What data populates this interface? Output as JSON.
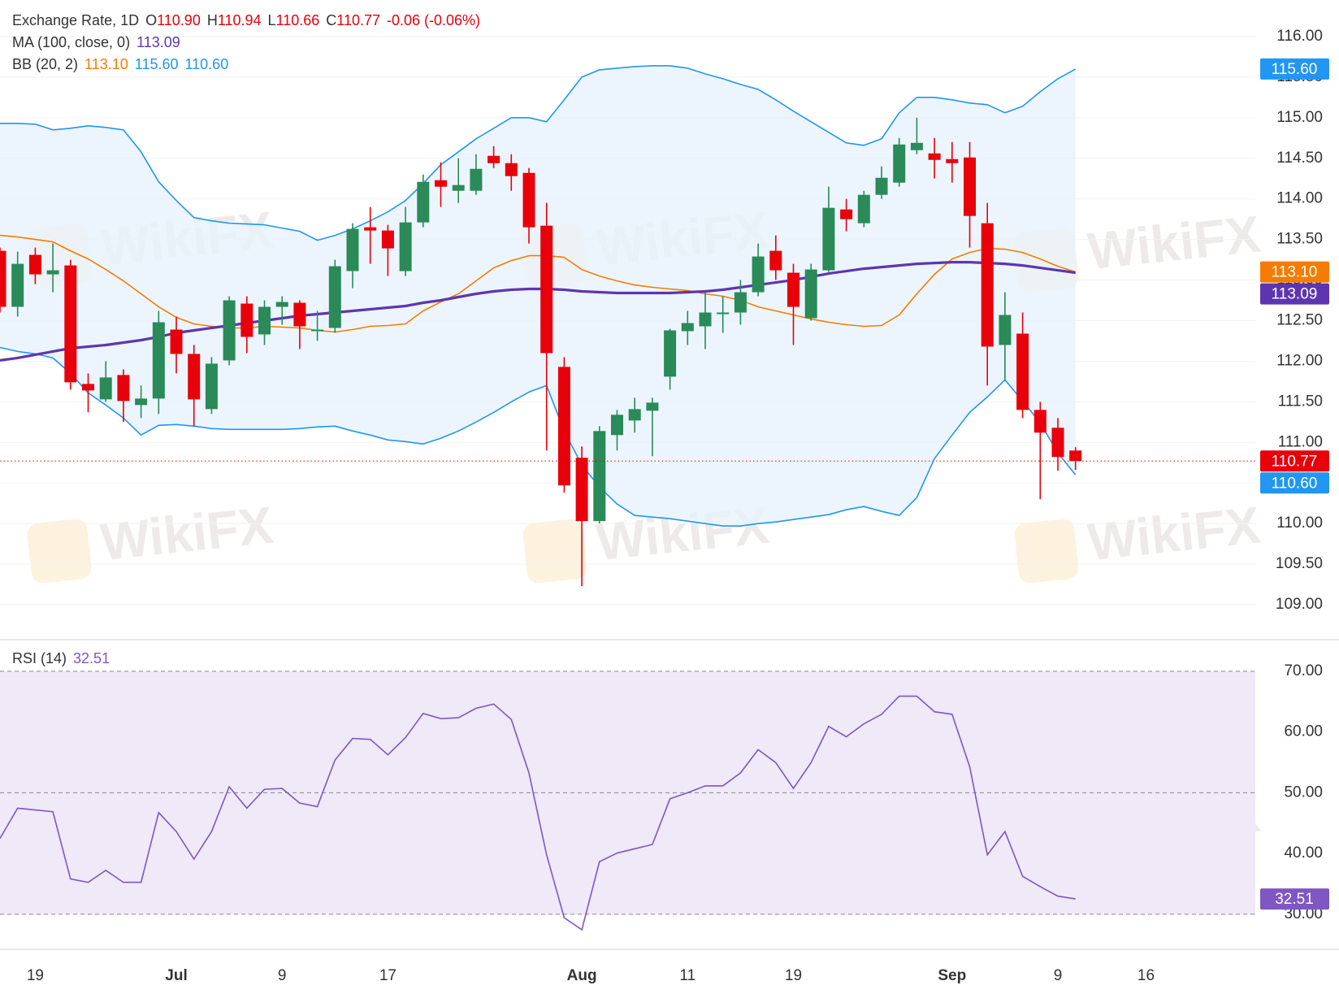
{
  "watermark": "WikiFX",
  "chart_data": [
    {
      "type": "candlestick",
      "title": "Exchange Rate, 1D",
      "header": [
        {
          "key": "O",
          "value": "110.90"
        },
        {
          "key": "H",
          "value": "110.94"
        },
        {
          "key": "L",
          "value": "110.66"
        },
        {
          "key": "C",
          "value": "110.77"
        }
      ],
      "change": "-0.06 (-0.06%)",
      "categories": [
        null,
        null,
        "19",
        null,
        null,
        null,
        null,
        null,
        null,
        null,
        "Jul",
        null,
        null,
        null,
        null,
        null,
        "9",
        null,
        null,
        null,
        null,
        null,
        "17",
        null,
        null,
        null,
        null,
        null,
        null,
        null,
        null,
        null,
        null,
        "Aug",
        null,
        null,
        null,
        null,
        null,
        "11",
        null,
        null,
        null,
        null,
        null,
        "19",
        null,
        null,
        null,
        null,
        null,
        null,
        null,
        null,
        "Sep",
        null,
        null,
        null,
        null,
        null,
        "9",
        null,
        null,
        null,
        null,
        "16"
      ],
      "open": [
        113.36,
        112.67,
        113.31,
        113.07,
        113.18,
        111.72,
        111.53,
        111.83,
        111.46,
        111.54,
        112.39,
        112.09,
        111.41,
        112.01,
        112.71,
        112.33,
        112.67,
        112.72,
        112.37,
        112.41,
        113.11,
        113.65,
        113.61,
        113.11,
        113.71,
        114.23,
        114.1,
        114.1,
        114.53,
        114.44,
        114.32,
        113.67,
        111.93,
        110.81,
        110.03,
        111.09,
        111.27,
        111.39,
        111.81,
        112.37,
        112.43,
        112.58,
        112.6,
        112.85,
        113.36,
        113.09,
        112.53,
        113.12,
        113.87,
        113.7,
        114.05,
        114.2,
        114.6,
        114.56,
        114.49,
        114.51,
        113.7,
        112.2,
        112.34,
        111.4,
        111.18,
        110.9,
        null,
        null,
        null,
        null
      ],
      "high": [
        113.4,
        113.35,
        113.4,
        113.45,
        113.25,
        111.85,
        112.0,
        111.9,
        111.7,
        112.62,
        112.55,
        112.2,
        112.05,
        112.8,
        112.8,
        112.75,
        112.8,
        112.75,
        112.62,
        113.25,
        113.7,
        113.9,
        113.68,
        113.9,
        114.3,
        114.45,
        114.5,
        114.55,
        114.65,
        114.55,
        114.38,
        113.95,
        112.05,
        110.95,
        111.2,
        111.4,
        111.55,
        111.55,
        112.4,
        112.62,
        112.85,
        112.8,
        113.0,
        113.45,
        113.55,
        113.2,
        113.2,
        114.15,
        114.0,
        114.1,
        114.4,
        114.75,
        115.0,
        114.75,
        114.7,
        114.7,
        113.95,
        112.85,
        112.6,
        111.5,
        111.3,
        110.94,
        null,
        null,
        null,
        null
      ],
      "low": [
        112.6,
        112.55,
        112.95,
        112.85,
        111.65,
        111.37,
        111.5,
        111.25,
        111.3,
        111.35,
        111.85,
        111.2,
        111.35,
        111.95,
        112.1,
        112.2,
        112.45,
        112.15,
        112.25,
        112.35,
        112.9,
        113.2,
        113.05,
        113.05,
        113.65,
        113.9,
        113.95,
        114.05,
        114.38,
        114.1,
        113.45,
        110.9,
        110.38,
        109.23,
        110.0,
        110.9,
        111.12,
        110.83,
        111.65,
        112.2,
        112.15,
        112.35,
        112.45,
        112.8,
        113.0,
        112.2,
        112.5,
        113.1,
        113.6,
        113.65,
        114.0,
        114.15,
        114.55,
        114.25,
        114.2,
        113.4,
        111.7,
        111.77,
        111.3,
        110.3,
        110.65,
        110.66,
        null,
        null,
        null,
        null
      ],
      "close": [
        112.67,
        113.2,
        113.07,
        113.12,
        111.74,
        111.64,
        111.8,
        111.51,
        111.54,
        112.48,
        112.09,
        111.53,
        111.97,
        112.75,
        112.3,
        112.67,
        112.73,
        112.43,
        112.39,
        113.17,
        113.63,
        113.61,
        113.39,
        113.71,
        114.21,
        114.15,
        114.17,
        114.37,
        114.44,
        114.28,
        113.65,
        112.1,
        110.47,
        110.03,
        111.14,
        111.34,
        111.41,
        111.49,
        112.38,
        112.47,
        112.6,
        112.6,
        112.85,
        113.29,
        113.12,
        112.67,
        113.13,
        113.89,
        113.75,
        114.05,
        114.26,
        114.67,
        114.69,
        114.48,
        114.44,
        113.79,
        112.18,
        112.57,
        111.4,
        111.12,
        110.82,
        110.77,
        null,
        null,
        null,
        null
      ],
      "close_label": "110.77",
      "up_color": "#2a8a58",
      "down_color": "#e8000a",
      "ylim": [
        108.6,
        116.45
      ],
      "yticks": [
        {
          "value": 109,
          "label": "109.00"
        },
        {
          "value": 109.5,
          "label": "109.50"
        },
        {
          "value": 110,
          "label": "110.00"
        },
        {
          "value": 110.5,
          "label": "110.50"
        },
        {
          "value": 111,
          "label": "111.00"
        },
        {
          "value": 111.5,
          "label": "111.50"
        },
        {
          "value": 112,
          "label": "112.00"
        },
        {
          "value": 112.5,
          "label": "112.50"
        },
        {
          "value": 113,
          "label": "113.00"
        },
        {
          "value": 113.5,
          "label": "113.50"
        },
        {
          "value": 114,
          "label": "114.00"
        },
        {
          "value": 114.5,
          "label": "114.50"
        },
        {
          "value": 115,
          "label": "115.00"
        },
        {
          "value": 115.5,
          "label": "115.50"
        },
        {
          "value": 116,
          "label": "116.00"
        }
      ],
      "grid": true,
      "indicators": [
        {
          "name": "MA (100, close, 0)",
          "lines": [
            {
              "color": "#5e35b1",
              "width": 3.2,
              "value_label": "113.09",
              "values": [
                112.01,
                112.04,
                112.08,
                112.12,
                112.16,
                112.18,
                112.2,
                112.23,
                112.26,
                112.3,
                112.35,
                112.38,
                112.41,
                112.44,
                112.47,
                112.5,
                112.53,
                112.56,
                112.58,
                112.6,
                112.62,
                112.64,
                112.66,
                112.68,
                112.72,
                112.75,
                112.79,
                112.83,
                112.86,
                112.88,
                112.89,
                112.89,
                112.88,
                112.86,
                112.85,
                112.84,
                112.84,
                112.84,
                112.84,
                112.85,
                112.86,
                112.88,
                112.91,
                112.94,
                112.97,
                113.0,
                113.04,
                113.08,
                113.11,
                113.14,
                113.16,
                113.18,
                113.2,
                113.21,
                113.22,
                113.22,
                113.21,
                113.2,
                113.18,
                113.15,
                113.12,
                113.09,
                null,
                null,
                null,
                null
              ]
            }
          ]
        },
        {
          "name": "BB (20, 2)",
          "fill": "#e6f2fc",
          "lines": [
            {
              "color": "#f57c00",
              "width": 1.6,
              "value_label": "113.10",
              "values": [
                113.55,
                113.53,
                113.5,
                113.47,
                113.36,
                113.26,
                113.13,
                112.99,
                112.83,
                112.67,
                112.54,
                112.46,
                112.43,
                112.41,
                112.41,
                112.43,
                112.42,
                112.41,
                112.38,
                112.36,
                112.39,
                112.43,
                112.44,
                112.46,
                112.62,
                112.73,
                112.83,
                112.99,
                113.15,
                113.24,
                113.3,
                113.3,
                113.28,
                113.13,
                113.05,
                112.99,
                112.94,
                112.91,
                112.89,
                112.87,
                112.83,
                112.8,
                112.75,
                112.67,
                112.62,
                112.57,
                112.52,
                112.48,
                112.45,
                112.43,
                112.44,
                112.57,
                112.83,
                113.07,
                113.26,
                113.34,
                113.39,
                113.38,
                113.34,
                113.26,
                113.17,
                113.1,
                null,
                null,
                null,
                null
              ]
            },
            {
              "color": "#2196f3",
              "width": 1.6,
              "value_label": "115.60",
              "values": [
                114.93,
                114.93,
                114.92,
                114.85,
                114.87,
                114.9,
                114.88,
                114.85,
                114.58,
                114.21,
                113.98,
                113.77,
                113.73,
                113.7,
                113.69,
                113.68,
                113.64,
                113.6,
                113.49,
                113.55,
                113.63,
                113.73,
                113.84,
                113.98,
                114.19,
                114.42,
                114.58,
                114.74,
                114.87,
                115.0,
                115.0,
                114.95,
                115.22,
                115.5,
                115.59,
                115.61,
                115.63,
                115.64,
                115.64,
                115.61,
                115.54,
                115.48,
                115.41,
                115.35,
                115.22,
                115.08,
                114.95,
                114.82,
                114.69,
                114.66,
                114.74,
                115.06,
                115.25,
                115.25,
                115.22,
                115.18,
                115.16,
                115.06,
                115.14,
                115.32,
                115.48,
                115.6,
                null,
                null,
                null,
                null
              ]
            },
            {
              "color": "#2196f3",
              "width": 1.6,
              "value_label": "110.60",
              "values": [
                112.17,
                112.12,
                112.09,
                112.04,
                111.85,
                111.61,
                111.46,
                111.3,
                111.09,
                111.21,
                111.22,
                111.2,
                111.17,
                111.16,
                111.16,
                111.16,
                111.16,
                111.17,
                111.19,
                111.2,
                111.14,
                111.09,
                111.03,
                111.01,
                110.98,
                111.05,
                111.14,
                111.25,
                111.37,
                111.5,
                111.62,
                111.7,
                111.14,
                110.72,
                110.45,
                110.24,
                110.1,
                110.08,
                110.06,
                110.03,
                110.0,
                109.97,
                109.97,
                110.0,
                110.02,
                110.05,
                110.08,
                110.11,
                110.17,
                110.21,
                110.15,
                110.1,
                110.32,
                110.8,
                111.09,
                111.37,
                111.56,
                111.77,
                111.51,
                111.24,
                110.87,
                110.6,
                null,
                null,
                null,
                null
              ]
            }
          ]
        }
      ]
    },
    {
      "type": "line",
      "ylim": [
        24.5,
        74.8
      ],
      "yticks": [
        {
          "value": 30,
          "label": "30.00"
        },
        {
          "value": 40,
          "label": "40.00"
        },
        {
          "value": 50,
          "label": "50.00"
        },
        {
          "value": 60,
          "label": "60.00"
        },
        {
          "value": 70,
          "label": "70.00"
        }
      ],
      "levels": [
        30,
        50,
        70
      ],
      "band_color": "#efe9f8",
      "indicators": [
        {
          "name": "RSI (14)",
          "lines": [
            {
              "color": "#7e57c2",
              "width": 1.6,
              "value_label": "32.51",
              "values": [
                42.48,
                47.45,
                47.16,
                46.88,
                35.82,
                35.25,
                37.23,
                35.25,
                35.25,
                46.74,
                43.62,
                39.08,
                43.62,
                50.99,
                47.45,
                50.57,
                50.71,
                48.3,
                47.73,
                55.39,
                58.94,
                58.79,
                56.24,
                59.08,
                63.05,
                62.2,
                62.34,
                63.9,
                64.61,
                62.06,
                53.26,
                39.79,
                29.43,
                27.45,
                38.65,
                40.07,
                40.78,
                41.49,
                49.01,
                50.0,
                51.13,
                51.13,
                53.26,
                57.09,
                54.96,
                50.71,
                54.96,
                60.92,
                59.22,
                61.35,
                62.91,
                65.89,
                65.89,
                63.33,
                62.91,
                54.26,
                39.79,
                43.62,
                36.24,
                34.54,
                32.98,
                32.51,
                null,
                null,
                null,
                null
              ]
            }
          ]
        }
      ]
    }
  ]
}
